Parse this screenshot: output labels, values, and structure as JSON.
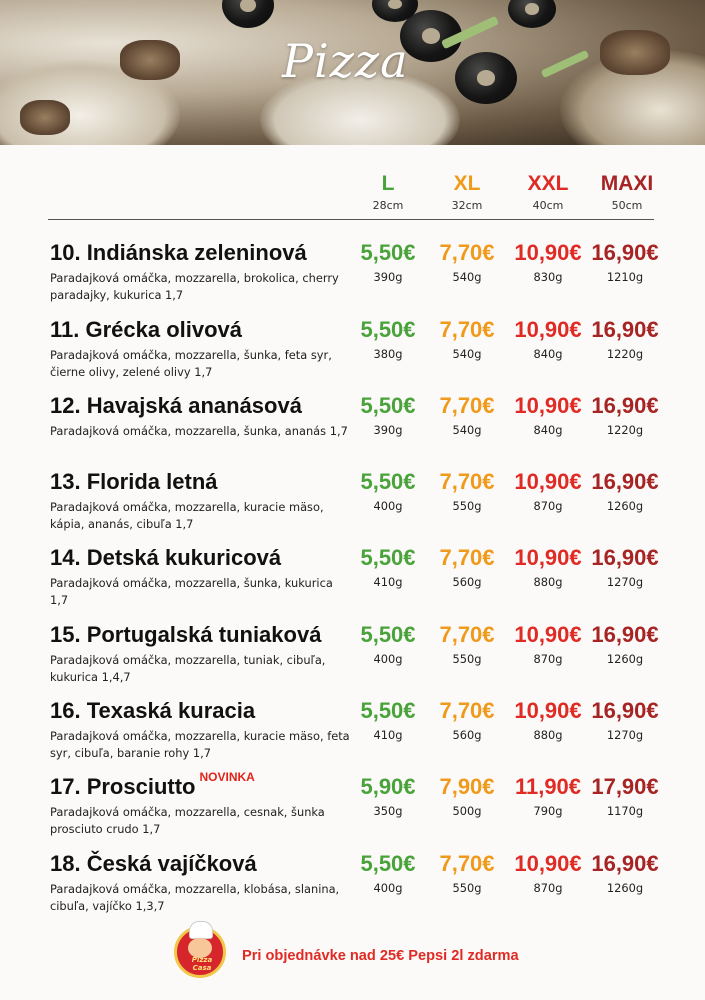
{
  "title": "Pizza",
  "colors": {
    "L": "#4aa33a",
    "XL": "#f09a1c",
    "XXL": "#e02b25",
    "MAXI": "#a72424"
  },
  "sizes": [
    {
      "label": "L",
      "cm": "28cm"
    },
    {
      "label": "XL",
      "cm": "32cm"
    },
    {
      "label": "XXL",
      "cm": "40cm"
    },
    {
      "label": "MAXI",
      "cm": "50cm"
    }
  ],
  "items": [
    {
      "name": "10. Indiánska zeleninová",
      "badge": "",
      "desc": "Paradajková omáčka, mozzarella, brokolica, cherry paradajky, kukurica 1,7",
      "prices": [
        "5,50€",
        "7,70€",
        "10,90€",
        "16,90€"
      ],
      "weights": [
        "390g",
        "540g",
        "830g",
        "1210g"
      ]
    },
    {
      "name": "11. Grécka olivová",
      "badge": "",
      "desc": "Paradajková omáčka, mozzarella, šunka, feta syr, čierne olivy, zelené olivy 1,7",
      "prices": [
        "5,50€",
        "7,70€",
        "10,90€",
        "16,90€"
      ],
      "weights": [
        "380g",
        "540g",
        "840g",
        "1220g"
      ]
    },
    {
      "name": "12. Havajská ananásová",
      "badge": "",
      "desc": "Paradajková omáčka, mozzarella, šunka, ananás 1,7",
      "prices": [
        "5,50€",
        "7,70€",
        "10,90€",
        "16,90€"
      ],
      "weights": [
        "390g",
        "540g",
        "840g",
        "1220g"
      ]
    },
    {
      "name": "13. Florida letná",
      "badge": "",
      "desc": "Paradajková omáčka, mozzarella, kuracie mäso, kápia, ananás, cibuľa 1,7",
      "prices": [
        "5,50€",
        "7,70€",
        "10,90€",
        "16,90€"
      ],
      "weights": [
        "400g",
        "550g",
        "870g",
        "1260g"
      ]
    },
    {
      "name": "14. Detská kukuricová",
      "badge": "",
      "desc": "Paradajková omáčka, mozzarella, šunka, kukurica 1,7",
      "prices": [
        "5,50€",
        "7,70€",
        "10,90€",
        "16,90€"
      ],
      "weights": [
        "410g",
        "560g",
        "880g",
        "1270g"
      ]
    },
    {
      "name": "15. Portugalská tuniaková",
      "badge": "",
      "desc": "Paradajková omáčka, mozzarella, tuniak, cibuľa, kukurica 1,4,7",
      "prices": [
        "5,50€",
        "7,70€",
        "10,90€",
        "16,90€"
      ],
      "weights": [
        "400g",
        "550g",
        "870g",
        "1260g"
      ]
    },
    {
      "name": "16. Texaská kuracia",
      "badge": "",
      "desc": "Paradajková omáčka, mozzarella, kuracie mäso, feta syr, cibuľa, baranie rohy 1,7",
      "prices": [
        "5,50€",
        "7,70€",
        "10,90€",
        "16,90€"
      ],
      "weights": [
        "410g",
        "560g",
        "880g",
        "1270g"
      ]
    },
    {
      "name": "17. Prosciutto",
      "badge": "NOVINKA",
      "desc": "Paradajková omáčka, mozzarella, cesnak, šunka prosciuto crudo 1,7",
      "prices": [
        "5,90€",
        "7,90€",
        "11,90€",
        "17,90€"
      ],
      "weights": [
        "350g",
        "500g",
        "790g",
        "1170g"
      ]
    },
    {
      "name": "18. Česká vajíčková",
      "badge": "",
      "desc": "Paradajková omáčka, mozzarella, klobása, slanina, cibuľa, vajíčko 1,3,7",
      "prices": [
        "5,50€",
        "7,70€",
        "10,90€",
        "16,90€"
      ],
      "weights": [
        "400g",
        "550g",
        "870g",
        "1260g"
      ]
    }
  ],
  "footer": {
    "logo_text": "Pizza Casa",
    "promo": "Pri objednávke nad 25€ Pepsi 2l zdarma"
  }
}
